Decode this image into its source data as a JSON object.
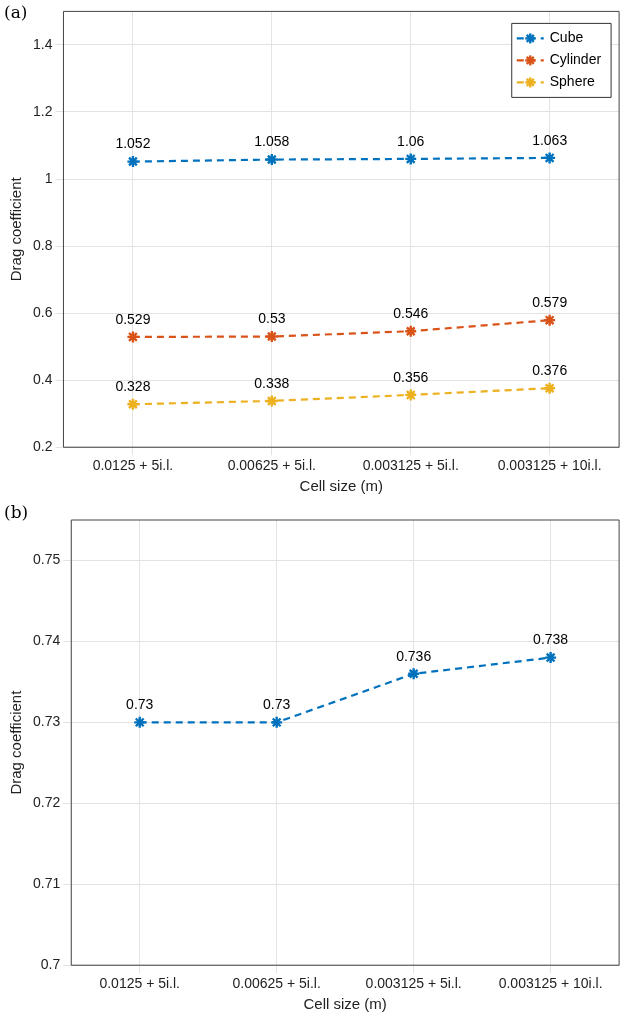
{
  "chart_data": [
    {
      "type": "line",
      "title": "(a)",
      "xlabel": "Cell size (m)",
      "ylabel": "Drag coefficient",
      "categories": [
        "0.0125 + 5i.l.",
        "0.00625 + 5i.l.",
        "0.003125 + 5i.l.",
        "0.003125 + 10i.l."
      ],
      "series": [
        {
          "name": "Cube",
          "color": "#0072bd",
          "values": [
            1.052,
            1.058,
            1.06,
            1.063
          ]
        },
        {
          "name": "Cylinder",
          "color": "#d95319",
          "values": [
            0.529,
            0.53,
            0.546,
            0.579
          ]
        },
        {
          "name": "Sphere",
          "color": "#edb120",
          "values": [
            0.328,
            0.338,
            0.356,
            0.376
          ]
        }
      ],
      "ylim": [
        0.2,
        1.5
      ],
      "yticks": [
        0.2,
        0.4,
        0.6,
        0.8,
        1,
        1.2,
        1.4
      ],
      "grid": true,
      "legend": "top right",
      "marker": "cross",
      "line_style": "dashed",
      "data_labels": true
    },
    {
      "type": "line",
      "title": "(b)",
      "xlabel": "Cell size (m)",
      "ylabel": "Drag coefficient",
      "categories": [
        "0.0125 + 5i.l.",
        "0.00625 + 5i.l.",
        "0.003125 + 5i.l.",
        "0.003125 + 10i.l."
      ],
      "series": [
        {
          "color": "#0072bd",
          "values": [
            0.73,
            0.73,
            0.736,
            0.738
          ]
        }
      ],
      "ylim": [
        0.7,
        0.755
      ],
      "yticks": [
        0.7,
        0.71,
        0.72,
        0.73,
        0.74,
        0.75
      ],
      "grid": true,
      "marker": "cross",
      "line_style": "dashed",
      "data_labels": true
    }
  ]
}
